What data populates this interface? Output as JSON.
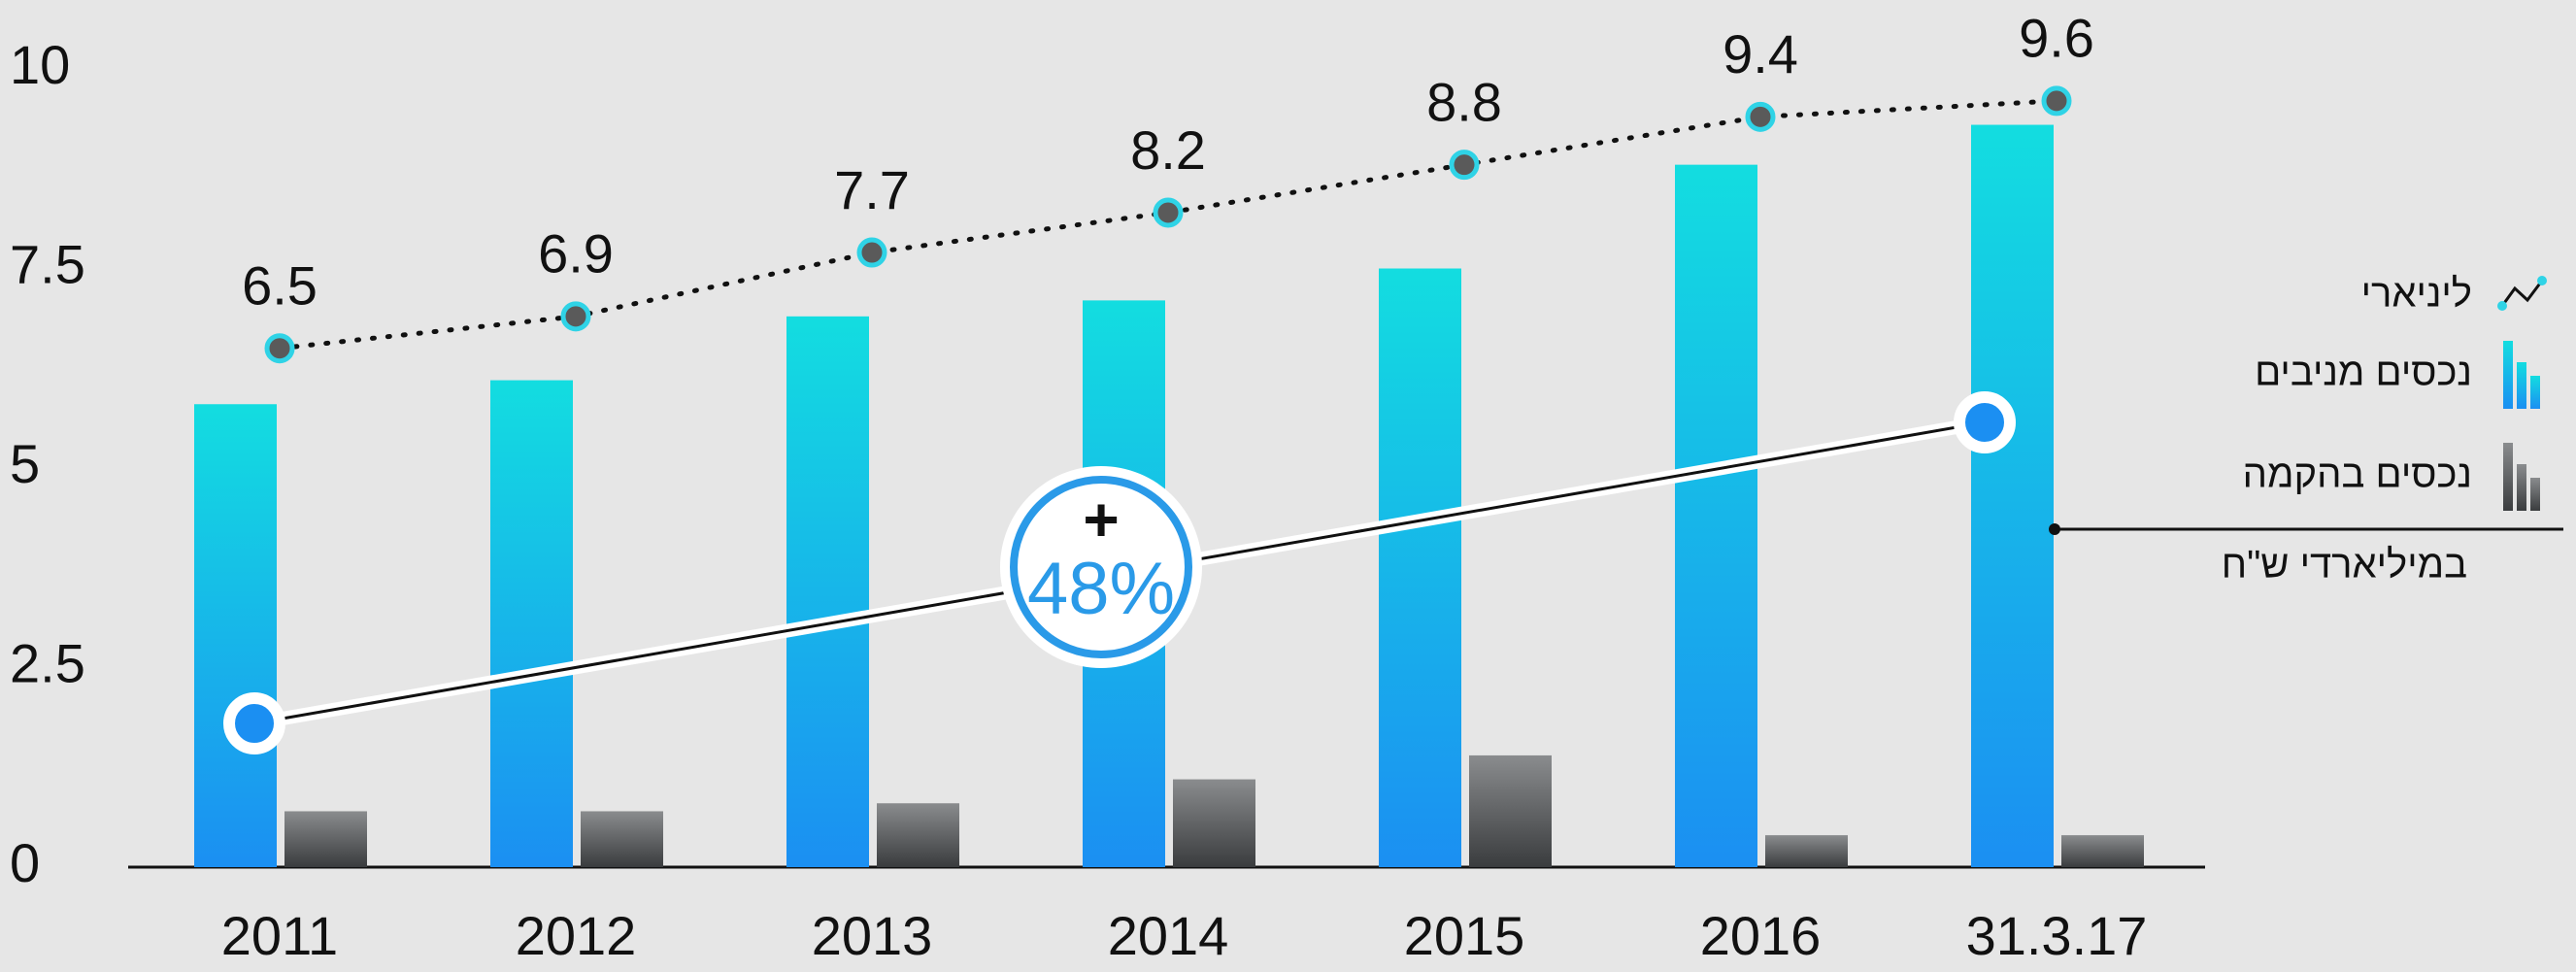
{
  "chart_data": {
    "type": "bar",
    "categories": [
      "2011",
      "2012",
      "2013",
      "2014",
      "2015",
      "2016",
      "31.3.17"
    ],
    "series": [
      {
        "name": "נכסים מניבים",
        "type": "bar",
        "color": [
          "#13dde0",
          "#1b8ff2"
        ],
        "values": [
          5.8,
          6.1,
          6.9,
          7.1,
          7.5,
          8.8,
          9.3
        ]
      },
      {
        "name": "נכסים בהקמה",
        "type": "bar",
        "color": [
          "#8a8c8e",
          "#3a3c3e"
        ],
        "values": [
          0.7,
          0.7,
          0.8,
          1.1,
          1.4,
          0.4,
          0.4
        ]
      },
      {
        "name": "ליניארי",
        "type": "line",
        "color": "#111111",
        "values": [
          6.5,
          6.9,
          7.7,
          8.2,
          8.8,
          9.4,
          9.6
        ]
      }
    ],
    "ylim": [
      0,
      10
    ],
    "yticks": [
      0,
      2.5,
      5,
      7.5,
      10
    ],
    "unit_label": "במיליארדי ש\"ח",
    "annotation": {
      "sign": "+",
      "text": "48%"
    }
  }
}
